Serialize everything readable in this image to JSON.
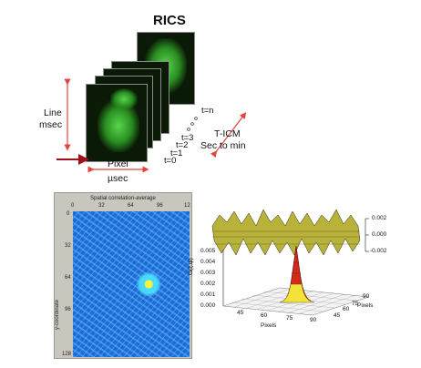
{
  "title": "RICS",
  "time_series_labels": [
    "t=n",
    "t=3",
    "t=2",
    "t=1",
    "t=0"
  ],
  "axis_labels": {
    "line": "Line",
    "line_unit": "msec",
    "pixel": "Pixel",
    "pixel_unit": "µsec",
    "ticm": "T-ICM",
    "ticm_unit": "Sec to min"
  },
  "correlation_map": {
    "title": "Spatial correlation-average",
    "ylabel": "y-coordinate",
    "x_ticks": [
      "0",
      "32",
      "64",
      "96",
      "12"
    ],
    "y_ticks": [
      "0",
      "32",
      "64",
      "96",
      "128"
    ]
  },
  "surface_plot": {
    "noise_ticks": [
      "0.002",
      "0.000",
      "-0.002"
    ],
    "z_axis_label": "G(ξ,ψ)",
    "z_ticks": [
      "0.005",
      "0.004",
      "0.003",
      "0.002",
      "0.001",
      "0.000"
    ],
    "x_label": "Pixels",
    "x_ticks": [
      "45",
      "60",
      "75",
      "90"
    ],
    "y_label": "Pixels",
    "y_ticks": [
      "45",
      "60",
      "75",
      "90"
    ]
  },
  "colors": {
    "arrow_red": "#e0463a",
    "heatmap_base": "#1f68d6",
    "peak_red": "#d42a1a",
    "peak_yellow": "#f2e23a",
    "noise_fill": "#b9b23a"
  }
}
